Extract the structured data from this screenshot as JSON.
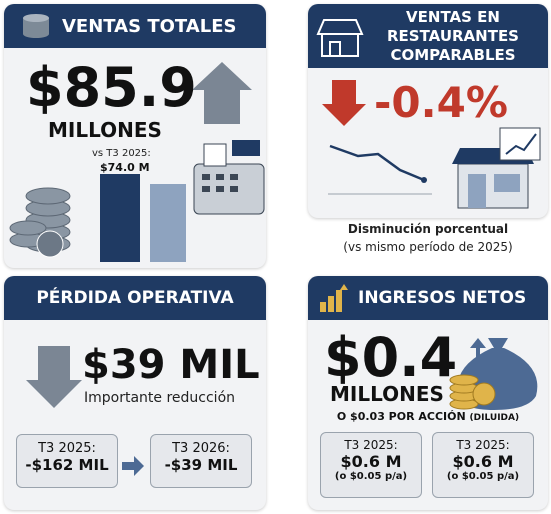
{
  "ventas_totales": {
    "title": "VENTAS TOTALES",
    "value": "$85.9",
    "unit": "MILLONES",
    "comparison_label": "vs T3 2025:",
    "comparison_value": "$74.0 M"
  },
  "restaurantes": {
    "title": "VENTAS EN RESTAURANTES COMPARABLES",
    "value": "-0.4%",
    "caption": "Disminución porcentual",
    "note": "(vs mismo período de 2025)"
  },
  "perdida": {
    "title": "PÉRDIDA OPERATIVA",
    "value": "$39 MIL",
    "caption": "Importante reducción",
    "boxes": [
      {
        "label": "T3 2025:",
        "value": "-$162 MIL"
      },
      {
        "label": "T3 2026:",
        "value": "-$39 MIL"
      }
    ]
  },
  "ingresos": {
    "title": "INGRESOS NETOS",
    "value": "$0.4",
    "unit": "MILLONES",
    "note": "O $0.03 POR ACCIÓN",
    "note_suffix": "(DILUIDA)",
    "boxes": [
      {
        "label": "T3 2025:",
        "value": "$0.6 M",
        "note": "(o $0.05 p/a)"
      },
      {
        "label": "T3 2025:",
        "value": "$0.6 M",
        "note": "(o $0.05 p/a)"
      }
    ]
  }
}
